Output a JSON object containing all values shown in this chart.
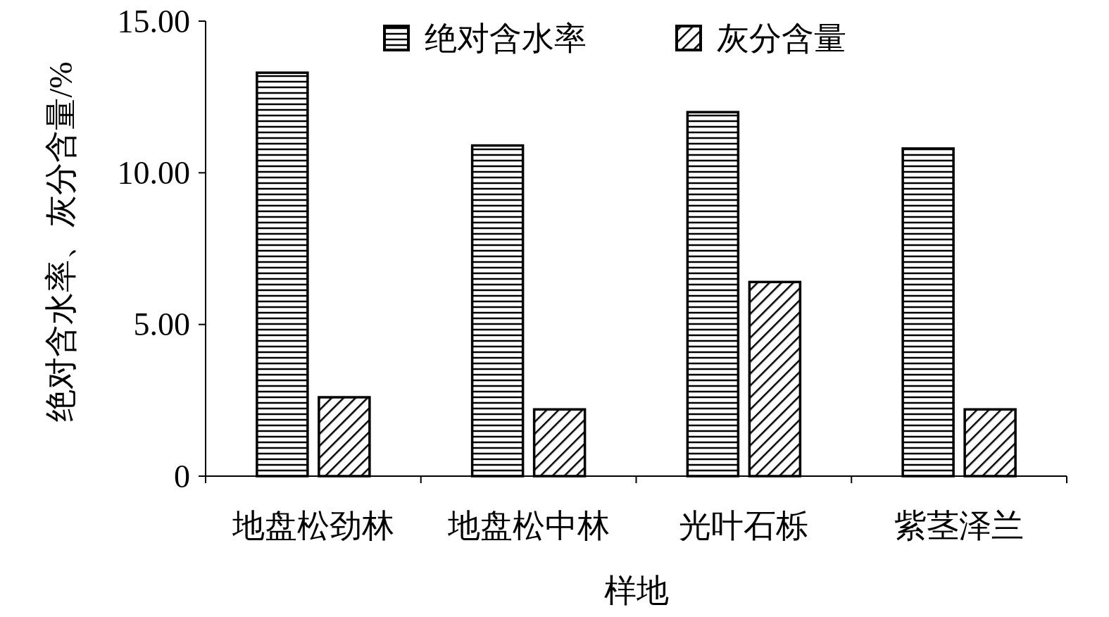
{
  "chart_data": {
    "type": "bar",
    "xlabel": "样地",
    "ylabel": "绝对含水率、灰分含量/%",
    "categories": [
      "地盘松劲林",
      "地盘松中林",
      "光叶石栎",
      "紫茎泽兰"
    ],
    "series": [
      {
        "name": "绝对含水率",
        "color": "#000000",
        "values": [
          13.3,
          10.9,
          12.0,
          10.8
        ]
      },
      {
        "name": "灰分含量",
        "color": "#000000",
        "values": [
          2.6,
          2.2,
          6.4,
          2.2
        ]
      }
    ],
    "ylim": [
      0,
      15
    ],
    "yticks": [
      {
        "value": 0,
        "label": "0"
      },
      {
        "value": 5,
        "label": "5.00"
      },
      {
        "value": 10,
        "label": "10.00"
      },
      {
        "value": 15,
        "label": "15.00"
      }
    ],
    "legend": "top right"
  }
}
